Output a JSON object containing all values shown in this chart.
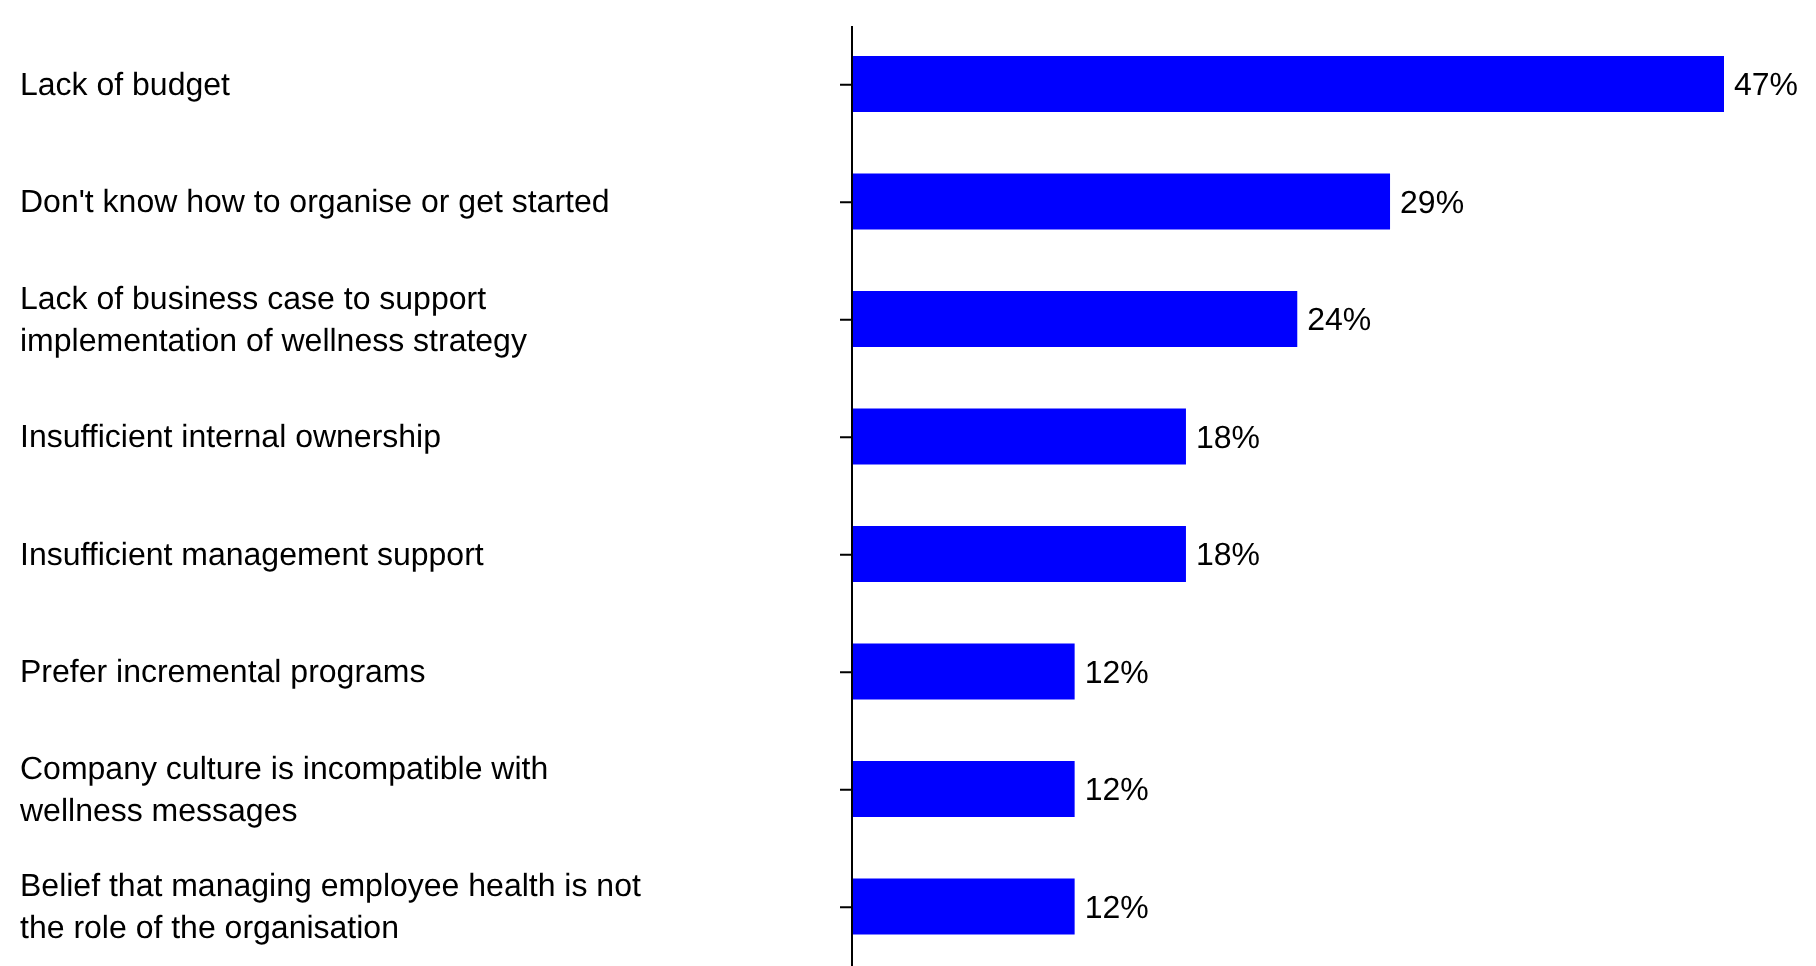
{
  "chart_data": {
    "type": "bar",
    "orientation": "horizontal",
    "categories": [
      "Lack of budget",
      "Don't know how to organise or get started",
      "Lack of business case to support implementation of wellness strategy",
      "Insufficient internal ownership",
      "Insufficient management support",
      "Prefer incremental programs",
      "Company culture is incompatible with wellness messages",
      "Belief that managing employee health is not the role of the organisation"
    ],
    "values": [
      47,
      29,
      24,
      18,
      18,
      12,
      12,
      12
    ],
    "value_labels": [
      "47%",
      "29%",
      "24%",
      "18%",
      "18%",
      "12%",
      "12%",
      "12%"
    ],
    "color": "#0000ff"
  }
}
